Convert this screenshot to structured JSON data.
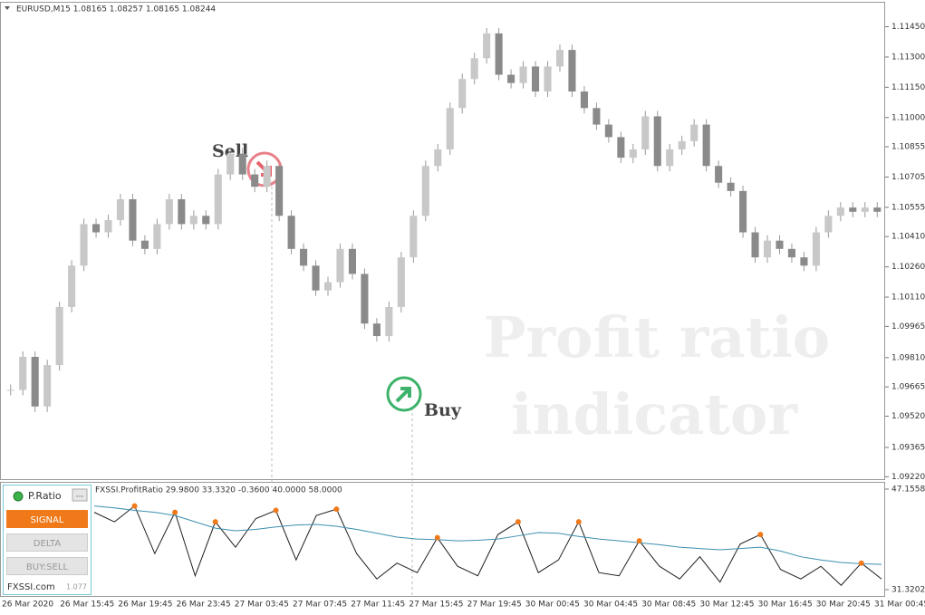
{
  "header": {
    "symbol": "EURUSD,M15 1.08165 1.08257 1.08165 1.08244",
    "indicator": "FXSSI.ProfitRatio 29.9800 33.3320 -0.3600 40.0000 58.0000"
  },
  "annotations": {
    "sell": "Sell",
    "buy": "Buy",
    "watermark": [
      "Profit ratio",
      "indicator"
    ]
  },
  "panel": {
    "title": "P.Ratio",
    "menu": "...",
    "buttons": [
      "SIGNAL",
      "DELTA",
      "BUY:SELL"
    ],
    "site": "FXSSI.com",
    "version": "1.077"
  },
  "time_labels": [
    "26 Mar 2020",
    "26 Mar 15:45",
    "26 Mar 19:45",
    "26 Mar 23:45",
    "27 Mar 03:45",
    "27 Mar 07:45",
    "27 Mar 11:45",
    "27 Mar 15:45",
    "27 Mar 19:45",
    "30 Mar 00:45",
    "30 Mar 04:45",
    "30 Mar 08:45",
    "30 Mar 12:45",
    "30 Mar 16:45",
    "30 Mar 20:45",
    "31 Mar 00:45"
  ],
  "chart_data": [
    {
      "type": "candlestick",
      "values": [
        1.0965,
        1.09814,
        1.09568,
        1.09773,
        1.10061,
        1.10266,
        1.10472,
        1.10431,
        1.10492,
        1.10595,
        1.1039,
        1.10349,
        1.10472,
        1.10595,
        1.10472,
        1.10513,
        1.10472,
        1.10718,
        1.10821,
        1.10718,
        1.10657,
        1.1076,
        1.10513,
        1.10349,
        1.10266,
        1.10143,
        1.10184,
        1.10349,
        1.10225,
        1.09979,
        1.09917,
        1.10061,
        1.10307,
        1.10513,
        1.1076,
        1.10842,
        1.11047,
        1.11191,
        1.11294,
        1.11417,
        1.11212,
        1.11171,
        1.11253,
        1.11129,
        1.11253,
        1.11335,
        1.11129,
        1.11047,
        1.10965,
        1.10903,
        1.10801,
        1.10842,
        1.11006,
        1.1076,
        1.10842,
        1.10883,
        1.10965,
        1.1076,
        1.10677,
        1.10636,
        1.10431,
        1.10307,
        1.1039,
        1.10349,
        1.10307,
        1.10266,
        1.10431,
        1.10513,
        1.10554,
        1.10533,
        1.10554,
        1.10533
      ],
      "ylim": [
        1.09208,
        1.11569
      ],
      "yticks": [
        {
          "value": 1.0922,
          "label": "1.09220"
        },
        {
          "value": 1.09365,
          "label": "1.09365"
        },
        {
          "value": 1.0952,
          "label": "1.09520"
        },
        {
          "value": 1.09665,
          "label": "1.09665"
        },
        {
          "value": 1.0981,
          "label": "1.09810"
        },
        {
          "value": 1.09965,
          "label": "1.09965"
        },
        {
          "value": 1.1011,
          "label": "1.10110"
        },
        {
          "value": 1.1026,
          "label": "1.10260"
        },
        {
          "value": 1.1041,
          "label": "1.10410"
        },
        {
          "value": 1.10555,
          "label": "1.10555"
        },
        {
          "value": 1.10705,
          "label": "1.10705"
        },
        {
          "value": 1.10855,
          "label": "1.10855"
        },
        {
          "value": 1.11,
          "label": "1.11000"
        },
        {
          "value": 1.1115,
          "label": "1.11150"
        },
        {
          "value": 1.113,
          "label": "1.11300"
        },
        {
          "value": 1.1145,
          "label": "1.11450"
        }
      ],
      "up_color": "#c8c8c8",
      "down_color": "#8a8a8a"
    },
    {
      "type": "line",
      "ylim": [
        31.3202,
        47.1558
      ],
      "yticks": [
        31.3202,
        47.1558
      ],
      "series": [
        {
          "color": "#1f1f1f",
          "values": [
            43.5,
            42.0,
            44.5,
            37.0,
            43.5,
            33.5,
            42.0,
            38.0,
            42.5,
            43.8,
            36.0,
            43.0,
            44.0,
            37.0,
            33.0,
            35.5,
            34.0,
            39.5,
            35.0,
            33.5,
            40.0,
            42.0,
            34.0,
            36.0,
            42.0,
            34.0,
            33.5,
            39.0,
            35.0,
            33.0,
            36.5,
            32.5,
            38.5,
            40.0,
            34.5,
            33.0,
            35.0,
            32.0,
            35.5,
            33.0
          ]
        },
        {
          "color": "#3c8fb0",
          "values": [
            44.5,
            44.2,
            43.8,
            43.5,
            43.0,
            42.0,
            41.0,
            40.6,
            40.8,
            41.2,
            41.5,
            41.6,
            41.3,
            40.8,
            40.2,
            39.6,
            39.3,
            39.2,
            39.0,
            39.1,
            39.3,
            39.8,
            40.3,
            40.2,
            39.7,
            39.3,
            39.0,
            38.7,
            38.4,
            38.0,
            37.8,
            37.6,
            37.8,
            38.0,
            37.4,
            36.5,
            36.0,
            35.6,
            35.4,
            35.3
          ]
        }
      ],
      "signal_color": "#f07a1a"
    }
  ]
}
